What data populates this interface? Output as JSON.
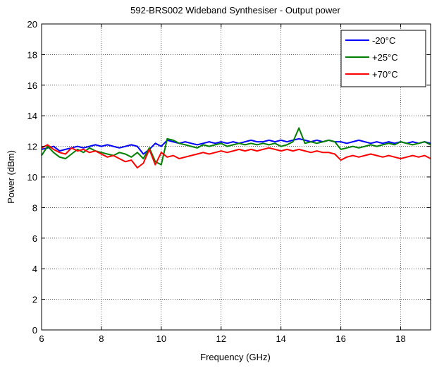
{
  "chart_data": {
    "type": "line",
    "title": "592-BRS002 Wideband Synthesiser - Output power",
    "xlabel": "Frequency (GHz)",
    "ylabel": "Power (dBm)",
    "xlim": [
      6,
      19
    ],
    "ylim": [
      0,
      20
    ],
    "xticks": [
      6,
      8,
      10,
      12,
      14,
      16,
      18
    ],
    "yticks": [
      0,
      2,
      4,
      6,
      8,
      10,
      12,
      14,
      16,
      18,
      20
    ],
    "grid": true,
    "legend_position": "top-right",
    "series": [
      {
        "name": "-20°C",
        "color": "#0000ff",
        "x": [
          6.0,
          6.2,
          6.4,
          6.6,
          6.8,
          7.0,
          7.2,
          7.4,
          7.6,
          7.8,
          8.0,
          8.2,
          8.4,
          8.6,
          8.8,
          9.0,
          9.2,
          9.4,
          9.6,
          9.8,
          10.0,
          10.2,
          10.4,
          10.6,
          10.8,
          11.0,
          11.2,
          11.4,
          11.6,
          11.8,
          12.0,
          12.2,
          12.4,
          12.6,
          12.8,
          13.0,
          13.2,
          13.4,
          13.6,
          13.8,
          14.0,
          14.2,
          14.4,
          14.6,
          14.8,
          15.0,
          15.2,
          15.4,
          15.6,
          15.8,
          16.0,
          16.2,
          16.4,
          16.6,
          16.8,
          17.0,
          17.2,
          17.4,
          17.6,
          17.8,
          18.0,
          18.2,
          18.4,
          18.6,
          18.8,
          19.0
        ],
        "y": [
          11.8,
          11.9,
          12.0,
          11.7,
          11.8,
          11.9,
          12.0,
          11.9,
          12.0,
          12.1,
          12.0,
          12.1,
          12.0,
          11.9,
          12.0,
          12.1,
          12.0,
          11.5,
          11.8,
          12.2,
          12.0,
          12.4,
          12.3,
          12.2,
          12.3,
          12.2,
          12.1,
          12.2,
          12.3,
          12.2,
          12.3,
          12.2,
          12.3,
          12.2,
          12.3,
          12.4,
          12.3,
          12.3,
          12.4,
          12.3,
          12.4,
          12.3,
          12.4,
          12.5,
          12.4,
          12.3,
          12.4,
          12.3,
          12.4,
          12.3,
          12.3,
          12.2,
          12.3,
          12.4,
          12.3,
          12.2,
          12.3,
          12.2,
          12.3,
          12.2,
          12.3,
          12.2,
          12.3,
          12.2,
          12.3,
          12.2
        ]
      },
      {
        "name": "+25°C",
        "color": "#008000",
        "x": [
          6.0,
          6.2,
          6.4,
          6.6,
          6.8,
          7.0,
          7.2,
          7.4,
          7.6,
          7.8,
          8.0,
          8.2,
          8.4,
          8.6,
          8.8,
          9.0,
          9.2,
          9.4,
          9.6,
          9.8,
          10.0,
          10.2,
          10.4,
          10.6,
          10.8,
          11.0,
          11.2,
          11.4,
          11.6,
          11.8,
          12.0,
          12.2,
          12.4,
          12.6,
          12.8,
          13.0,
          13.2,
          13.4,
          13.6,
          13.8,
          14.0,
          14.2,
          14.4,
          14.6,
          14.8,
          15.0,
          15.2,
          15.4,
          15.6,
          15.8,
          16.0,
          16.2,
          16.4,
          16.6,
          16.8,
          17.0,
          17.2,
          17.4,
          17.6,
          17.8,
          18.0,
          18.2,
          18.4,
          18.6,
          18.8,
          19.0
        ],
        "y": [
          11.4,
          12.0,
          11.6,
          11.3,
          11.2,
          11.5,
          11.8,
          11.6,
          11.9,
          11.7,
          11.6,
          11.5,
          11.4,
          11.6,
          11.5,
          11.3,
          11.6,
          11.2,
          11.9,
          11.0,
          10.8,
          12.5,
          12.4,
          12.2,
          12.1,
          12.0,
          11.9,
          12.1,
          12.0,
          12.1,
          12.2,
          12.0,
          12.1,
          12.2,
          12.1,
          12.2,
          12.1,
          12.2,
          12.1,
          12.2,
          12.0,
          12.1,
          12.3,
          13.2,
          12.2,
          12.3,
          12.2,
          12.3,
          12.4,
          12.3,
          11.8,
          11.9,
          12.0,
          11.9,
          12.0,
          12.1,
          12.0,
          12.1,
          12.2,
          12.1,
          12.3,
          12.2,
          12.1,
          12.2,
          12.3,
          12.1
        ]
      },
      {
        "name": "+70°C",
        "color": "#ff0000",
        "x": [
          6.0,
          6.2,
          6.4,
          6.6,
          6.8,
          7.0,
          7.2,
          7.4,
          7.6,
          7.8,
          8.0,
          8.2,
          8.4,
          8.6,
          8.8,
          9.0,
          9.2,
          9.4,
          9.6,
          9.8,
          10.0,
          10.2,
          10.4,
          10.6,
          10.8,
          11.0,
          11.2,
          11.4,
          11.6,
          11.8,
          12.0,
          12.2,
          12.4,
          12.6,
          12.8,
          13.0,
          13.2,
          13.4,
          13.6,
          13.8,
          14.0,
          14.2,
          14.4,
          14.6,
          14.8,
          15.0,
          15.2,
          15.4,
          15.6,
          15.8,
          16.0,
          16.2,
          16.4,
          16.6,
          16.8,
          17.0,
          17.2,
          17.4,
          17.6,
          17.8,
          18.0,
          18.2,
          18.4,
          18.6,
          18.8,
          19.0
        ],
        "y": [
          11.9,
          12.1,
          11.8,
          11.6,
          11.5,
          11.9,
          11.7,
          11.8,
          11.6,
          11.7,
          11.5,
          11.3,
          11.4,
          11.2,
          11.0,
          11.1,
          10.6,
          10.9,
          11.8,
          10.8,
          11.6,
          11.3,
          11.4,
          11.2,
          11.3,
          11.4,
          11.5,
          11.6,
          11.5,
          11.6,
          11.7,
          11.6,
          11.7,
          11.8,
          11.7,
          11.8,
          11.7,
          11.8,
          11.9,
          11.8,
          11.7,
          11.8,
          11.7,
          11.8,
          11.7,
          11.6,
          11.7,
          11.6,
          11.6,
          11.5,
          11.1,
          11.3,
          11.4,
          11.3,
          11.4,
          11.5,
          11.4,
          11.3,
          11.4,
          11.3,
          11.2,
          11.3,
          11.4,
          11.3,
          11.4,
          11.2
        ]
      }
    ]
  }
}
